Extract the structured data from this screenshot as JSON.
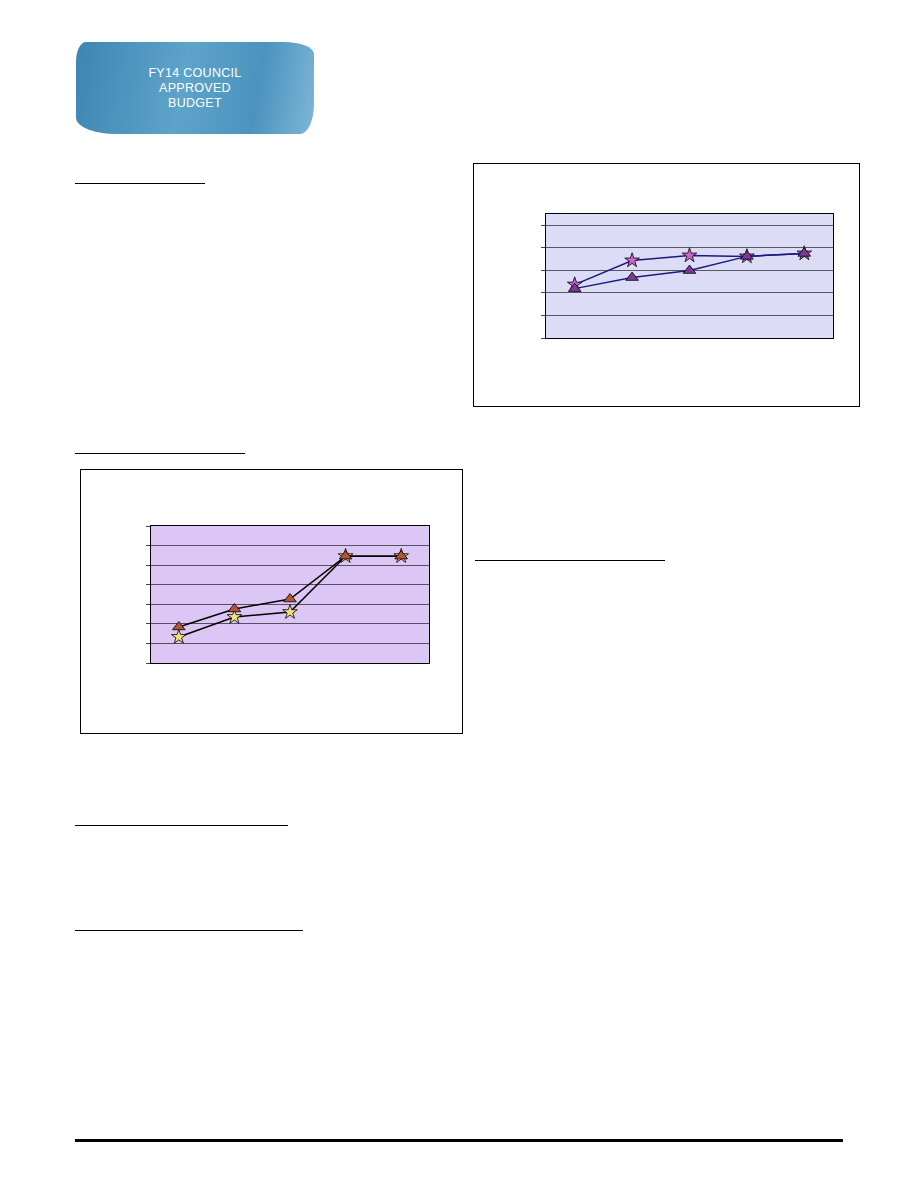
{
  "header": {
    "badge": [
      "FY14 COUNCIL",
      "APPROVED",
      "BUDGET"
    ]
  },
  "chart_data": [
    {
      "type": "line",
      "categories": [
        null,
        null,
        null,
        null,
        null
      ],
      "series": [
        {
          "color": "#cc66cc",
          "marker": "star",
          "values": [
            2.37,
            3.44,
            3.66,
            3.62,
            3.75
          ]
        },
        {
          "color": "#7a3a9a",
          "marker": "triangle-up",
          "values": [
            2.19,
            2.68,
            2.99,
            3.62,
            3.75
          ]
        }
      ],
      "ylim": [
        0,
        5.5
      ],
      "yticks": [
        0,
        1,
        2,
        3,
        4,
        5
      ],
      "grid": true,
      "tick_labels": false
    },
    {
      "type": "line",
      "categories": [
        null,
        null,
        null,
        null,
        null
      ],
      "series": [
        {
          "color": "#f2e07a",
          "marker": "star",
          "values": [
            1.33,
            2.35,
            2.6,
            5.46,
            5.46
          ]
        },
        {
          "color": "#b5533a",
          "marker": "triangle-up",
          "values": [
            1.84,
            2.76,
            3.27,
            5.46,
            5.46
          ]
        }
      ],
      "ylim": [
        0,
        7
      ],
      "yticks": [
        0,
        1,
        2,
        3,
        4,
        5,
        6,
        7
      ],
      "grid": true,
      "tick_labels": false
    }
  ]
}
